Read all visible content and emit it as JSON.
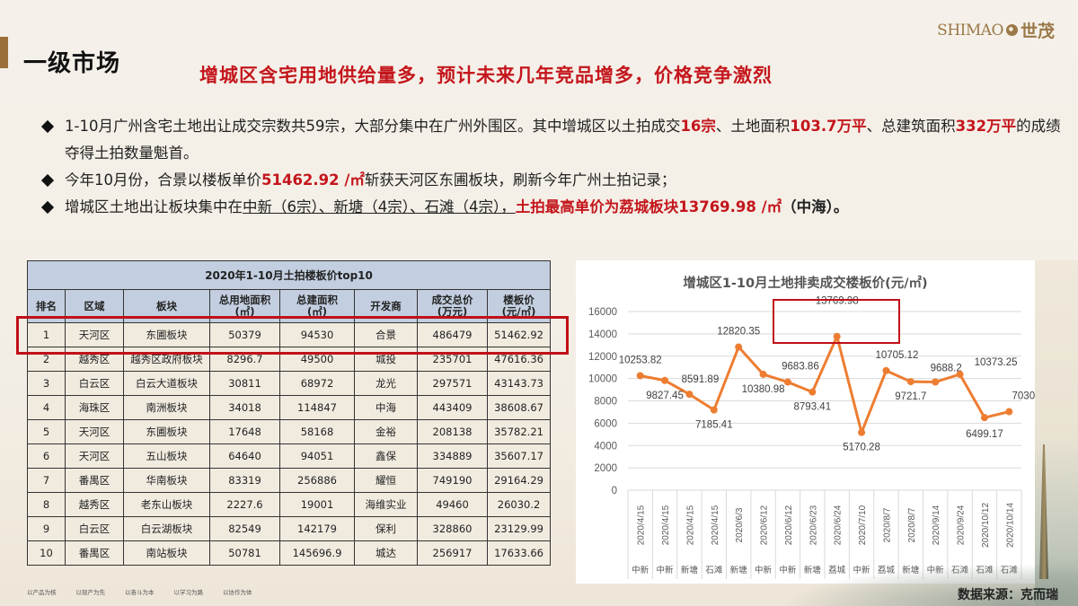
{
  "header": {
    "section_title": "一级市场",
    "headline": "增城区含宅用地供给量多，预计未来几年竞品增多，价格竞争激烈",
    "logo": {
      "en": "SHIMAO",
      "zh": "世茂",
      "icon": "globe-logo-icon"
    }
  },
  "bullets": [
    {
      "segments": [
        {
          "text": "1-10月广州含宅土地出让成交宗数共59宗，大部分集中在广州外围区。其中增城区以土拍成交",
          "style": "normal"
        },
        {
          "text": "16宗",
          "style": "red"
        },
        {
          "text": "、土地面积",
          "style": "normal"
        },
        {
          "text": "103.7万平",
          "style": "red"
        },
        {
          "text": "、总建筑面积",
          "style": "normal"
        },
        {
          "text": "332万平",
          "style": "red"
        },
        {
          "text": "的成绩夺得土拍数量魁首。",
          "style": "normal"
        }
      ]
    },
    {
      "segments": [
        {
          "text": "今年10月份，合景以楼板单价",
          "style": "normal"
        },
        {
          "text": "51462.92 /㎡",
          "style": "red"
        },
        {
          "text": "斩获天河区东圃板块，刷新今年广州土拍记录；",
          "style": "normal"
        }
      ]
    },
    {
      "segments": [
        {
          "text": "增城区土地出让板块集中在",
          "style": "normal"
        },
        {
          "text": "中新（6宗）、新塘（4宗）、石滩（4宗），",
          "style": "underline"
        },
        {
          "text": "土拍最高单价为荔城板块13769.98 /㎡",
          "style": "red"
        },
        {
          "text": "（中海）。",
          "style": "bold"
        }
      ]
    }
  ],
  "table": {
    "title": "2020年1-10月土拍楼板价top10",
    "columns": [
      "排名",
      "区域",
      "板块",
      "总用地面积\n(㎡)",
      "总建面积\n(㎡)",
      "开发商",
      "成交总价\n(万元)",
      "楼板价\n(元/㎡)"
    ],
    "rows": [
      [
        "1",
        "天河区",
        "东圃板块",
        "50379",
        "94530",
        "合景",
        "486479",
        "51462.92"
      ],
      [
        "2",
        "越秀区",
        "越秀区政府板块",
        "8296.7",
        "49500",
        "城投",
        "235701",
        "47616.36"
      ],
      [
        "3",
        "白云区",
        "白云大道板块",
        "30811",
        "68972",
        "龙光",
        "297571",
        "43143.73"
      ],
      [
        "4",
        "海珠区",
        "南洲板块",
        "34018",
        "114847",
        "中海",
        "443409",
        "38608.67"
      ],
      [
        "5",
        "天河区",
        "东圃板块",
        "17648",
        "58168",
        "金裕",
        "208138",
        "35782.21"
      ],
      [
        "6",
        "天河区",
        "五山板块",
        "64640",
        "94051",
        "鑫保",
        "334889",
        "35607.17"
      ],
      [
        "7",
        "番禺区",
        "华南板块",
        "83319",
        "256886",
        "耀恒",
        "749190",
        "29164.29"
      ],
      [
        "8",
        "越秀区",
        "老东山板块",
        "2227.6",
        "19001",
        "海维实业",
        "49460",
        "26030.2"
      ],
      [
        "9",
        "白云区",
        "白云湖板块",
        "82549",
        "142179",
        "保利",
        "328860",
        "23129.99"
      ],
      [
        "10",
        "番禺区",
        "南站板块",
        "50781",
        "145696.9",
        "城达",
        "256917",
        "17633.66"
      ]
    ],
    "highlight_row": 0,
    "highlight_color": "#c01018"
  },
  "chart_data": {
    "type": "line",
    "title": "增城区1-10月土地排卖成交楼板价(元/㎡)",
    "x": [
      "2020/4/15",
      "2020/4/15",
      "2020/4/15",
      "2020/4/15",
      "2020/6/3",
      "2020/6/12",
      "2020/6/12",
      "2020/6/23",
      "2020/6/24",
      "2020/7/10",
      "2020/8/7",
      "2020/8/7",
      "2020/9/14",
      "2020/9/24",
      "2020/10/12",
      "2020/10/14"
    ],
    "categories": [
      "中新",
      "中新",
      "新塘",
      "石滩",
      "新塘",
      "中新",
      "中新",
      "新塘",
      "荔城",
      "中新",
      "荔城",
      "新塘",
      "中新",
      "石滩",
      "石滩",
      "石滩"
    ],
    "series": [
      {
        "name": "楼板价",
        "color": "#ed7d31",
        "values": [
          10253.82,
          9827.45,
          8591.89,
          7185.41,
          12820.35,
          10380.98,
          9683.86,
          8793.41,
          13769.98,
          5170.28,
          10705.12,
          9721.7,
          9688.2,
          10373.25,
          6499.17,
          7030.39
        ]
      }
    ],
    "xlabel": "",
    "ylabel": "",
    "ylim": [
      0,
      16000
    ],
    "yticks": [
      0,
      2000,
      4000,
      6000,
      8000,
      10000,
      12000,
      14000,
      16000
    ],
    "grid": true,
    "legend": "none",
    "annotation": {
      "text": "13769.98",
      "highlighted": true,
      "box_color": "#c01018"
    }
  },
  "footer": {
    "mottos": [
      "以产品为核",
      "以现产为先",
      "以奋斗为本",
      "以学习为路",
      "以协作为体"
    ],
    "source": "数据来源：克而瑞"
  }
}
